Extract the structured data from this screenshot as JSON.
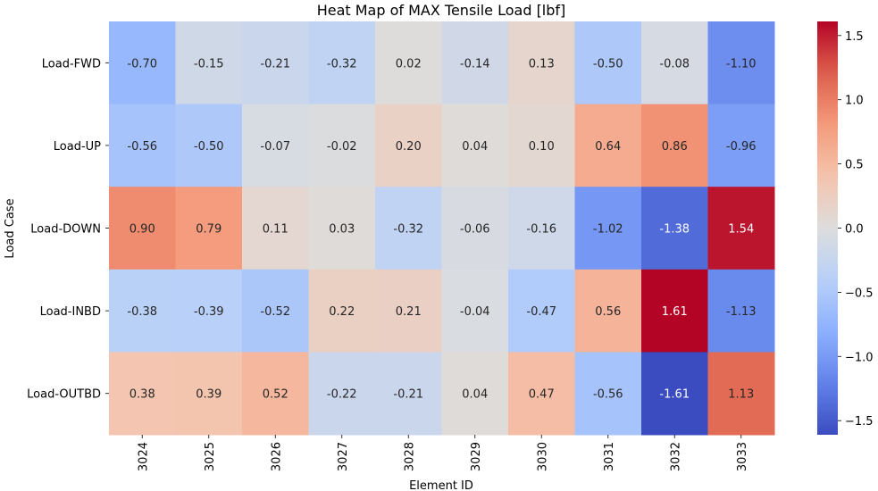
{
  "chart_data": {
    "type": "heatmap",
    "title": "Heat Map of MAX Tensile Load [lbf]",
    "xlabel": "Element ID",
    "ylabel": "Load Case",
    "x_categories": [
      "3024",
      "3025",
      "3026",
      "3027",
      "3028",
      "3029",
      "3030",
      "3031",
      "3032",
      "3033"
    ],
    "y_categories": [
      "Load-FWD",
      "Load-UP",
      "Load-DOWN",
      "Load-INBD",
      "Load-OUTBD"
    ],
    "values": [
      [
        -0.7,
        -0.15,
        -0.21,
        -0.32,
        0.02,
        -0.14,
        0.13,
        -0.5,
        -0.08,
        -1.1
      ],
      [
        -0.56,
        -0.5,
        -0.07,
        -0.02,
        0.2,
        0.04,
        0.1,
        0.64,
        0.86,
        -0.96
      ],
      [
        0.9,
        0.79,
        0.11,
        0.03,
        -0.32,
        -0.06,
        -0.16,
        -1.02,
        -1.38,
        1.54
      ],
      [
        -0.38,
        -0.39,
        -0.52,
        0.22,
        0.21,
        -0.04,
        -0.47,
        0.56,
        1.61,
        -1.13
      ],
      [
        0.38,
        0.39,
        0.52,
        -0.22,
        -0.21,
        0.04,
        0.47,
        -0.56,
        -1.61,
        1.13
      ]
    ],
    "value_range": [
      -1.61,
      1.61
    ],
    "colormap": "coolwarm",
    "colorbar_ticks": [
      -1.5,
      -1.0,
      -0.5,
      0.0,
      0.5,
      1.0,
      1.5
    ],
    "colorbar_tick_labels": [
      "−1.5",
      "−1.0",
      "−0.5",
      "0.0",
      "0.5",
      "1.0",
      "1.5"
    ],
    "annotation_format": "0.00"
  }
}
